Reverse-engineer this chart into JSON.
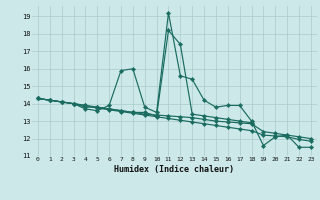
{
  "xlabel": "Humidex (Indice chaleur)",
  "background_color": "#cce8e8",
  "grid_color": "#aacccc",
  "line_color": "#1a6b60",
  "xlim": [
    -0.5,
    23.5
  ],
  "ylim": [
    11.0,
    19.6
  ],
  "yticks": [
    11,
    12,
    13,
    14,
    15,
    16,
    17,
    18,
    19
  ],
  "xticks": [
    0,
    1,
    2,
    3,
    4,
    5,
    6,
    7,
    8,
    9,
    10,
    11,
    12,
    13,
    14,
    15,
    16,
    17,
    18,
    19,
    20,
    21,
    22,
    23
  ],
  "line1_x": [
    0,
    1,
    2,
    3,
    4,
    5,
    6,
    7,
    8,
    9,
    10,
    11,
    12,
    13,
    14,
    15,
    16,
    17,
    18,
    19,
    20,
    21,
    22,
    23
  ],
  "line1_y": [
    14.3,
    14.2,
    14.1,
    14.0,
    13.7,
    13.6,
    13.9,
    15.9,
    16.0,
    13.8,
    13.5,
    19.2,
    15.6,
    15.4,
    14.2,
    13.8,
    13.9,
    13.9,
    13.0,
    11.6,
    12.1,
    12.2,
    11.5,
    11.5
  ],
  "line2_x": [
    0,
    1,
    2,
    3,
    4,
    5,
    6,
    7,
    8,
    9,
    10,
    11,
    12,
    13,
    14,
    15,
    16,
    17,
    18
  ],
  "line2_y": [
    14.3,
    14.2,
    14.1,
    14.0,
    13.8,
    13.8,
    13.7,
    13.6,
    13.5,
    13.5,
    13.3,
    18.2,
    17.4,
    13.4,
    13.3,
    13.2,
    13.1,
    13.0,
    12.9
  ],
  "line3_x": [
    0,
    1,
    2,
    3,
    4,
    5,
    6,
    7,
    8,
    9,
    10,
    11,
    12,
    13,
    14,
    15,
    16,
    17,
    18,
    19,
    20,
    21,
    22,
    23
  ],
  "line3_y": [
    14.3,
    14.2,
    14.1,
    14.0,
    13.9,
    13.8,
    13.7,
    13.6,
    13.5,
    13.4,
    13.35,
    13.3,
    13.25,
    13.2,
    13.1,
    13.0,
    12.95,
    12.9,
    12.85,
    12.4,
    12.3,
    12.2,
    12.1,
    12.0
  ],
  "line4_x": [
    0,
    1,
    2,
    3,
    4,
    5,
    6,
    7,
    8,
    9,
    10,
    11,
    12,
    13,
    14,
    15,
    16,
    17,
    18,
    19,
    20,
    21,
    22,
    23
  ],
  "line4_y": [
    14.3,
    14.2,
    14.1,
    14.0,
    13.9,
    13.75,
    13.65,
    13.55,
    13.45,
    13.35,
    13.25,
    13.15,
    13.05,
    12.95,
    12.85,
    12.75,
    12.65,
    12.55,
    12.45,
    12.2,
    12.15,
    12.1,
    11.95,
    11.85
  ]
}
